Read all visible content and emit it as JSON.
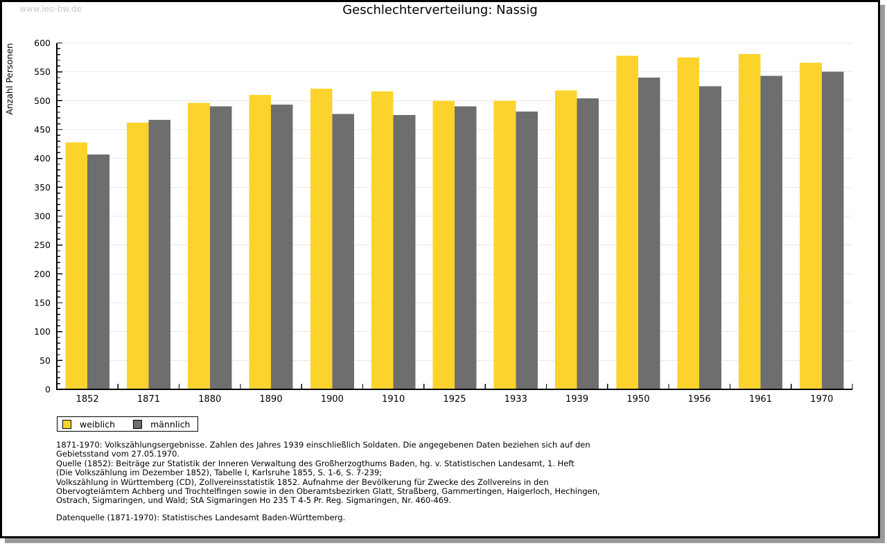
{
  "watermark": "www.leo-bw.de",
  "title": "Geschlechterverteilung: Nassig",
  "legend": {
    "items": [
      {
        "label": "weiblich",
        "color": "#FCD32D"
      },
      {
        "label": "männlich",
        "color": "#6E6E6E"
      }
    ]
  },
  "footer": {
    "notes": [
      "1871-1970: Volkszählungsergebnisse. Zahlen des Jahres 1939 einschließlich Soldaten. Die angegebenen Daten beziehen sich auf den",
      "Gebietsstand vom 27.05.1970.",
      "Quelle (1852): Beiträge zur Statistik der Inneren Verwaltung des Großherzogthums Baden, hg. v. Statistischen Landesamt, 1. Heft",
      "(Die Volkszählung im Dezember 1852), Tabelle I, Karlsruhe 1855, S. 1-6, S. 7-239;",
      "Volkszählung in Württemberg (CD), Zollvereinsstatistik 1852. Aufnahme der Bevölkerung für Zwecke des Zollvereins in den",
      "Obervogteiämtern Achberg und Trochtelfingen sowie in den Oberamtsbezirken Glatt, Straßberg, Gammertingen, Haigerloch, Hechingen,",
      "Ostrach, Sigmaringen, und Wald; StA Sigmaringen Ho 235 T 4-5 Pr. Reg. Sigmaringen, Nr. 460-469."
    ],
    "datasource": "Datenquelle (1871-1970): Statistisches Landesamt Baden-Württemberg."
  },
  "chart_data": {
    "type": "bar",
    "title": "Geschlechterverteilung: Nassig",
    "xlabel": "",
    "ylabel": "Anzahl Personen",
    "categories": [
      "1852",
      "1871",
      "1880",
      "1890",
      "1900",
      "1910",
      "1925",
      "1933",
      "1939",
      "1950",
      "1956",
      "1961",
      "1970"
    ],
    "series": [
      {
        "name": "weiblich",
        "color": "#FCD32D",
        "values": [
          428,
          462,
          496,
          510,
          521,
          516,
          500,
          500,
          518,
          578,
          575,
          581,
          566
        ]
      },
      {
        "name": "männlich",
        "color": "#6E6E6E",
        "values": [
          407,
          467,
          490,
          493,
          477,
          475,
          490,
          481,
          504,
          540,
          525,
          543,
          550
        ]
      }
    ],
    "ylim": [
      0,
      600
    ],
    "ytick_major": 50,
    "ytick_minor": 10,
    "grid": true,
    "gridline_color": "#e7e7e7",
    "legend_position": "bottom-left"
  }
}
